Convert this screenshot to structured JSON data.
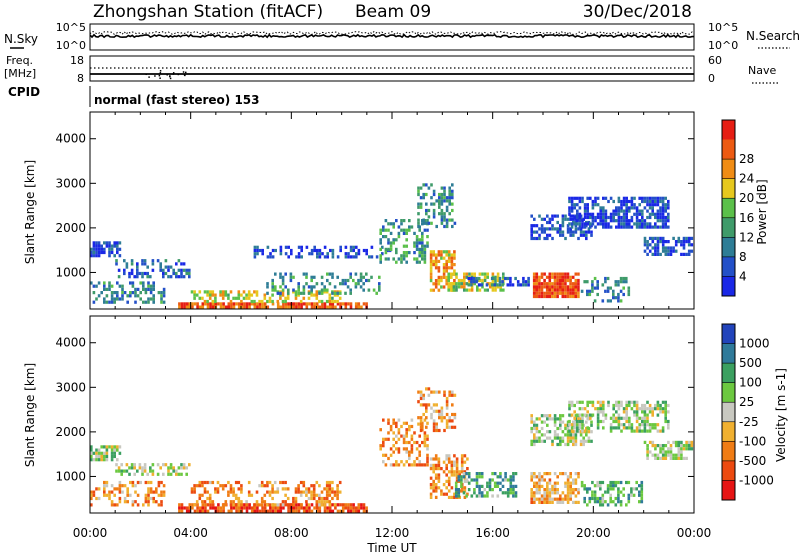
{
  "header": {
    "station": "Zhongshan Station (fitACF)",
    "beam": "Beam 09",
    "date": "30/Dec/2018"
  },
  "top_panel": {
    "left_label": "N.Sky",
    "right_label": "N.Search",
    "left_ticks": [
      "10^5",
      "10^0"
    ],
    "right_ticks": [
      "10^5",
      "10^0"
    ]
  },
  "freq_panel": {
    "left_label_1": "Freq.",
    "left_label_2": "[MHz]",
    "right_label": "Nave",
    "left_ticks": [
      "18",
      "8"
    ],
    "right_ticks": [
      "60",
      "0"
    ]
  },
  "cpid": {
    "label": "CPID",
    "mode": "normal (fast stereo) 153"
  },
  "x_axis": {
    "label": "Time UT",
    "ticks": [
      "00:00",
      "04:00",
      "08:00",
      "12:00",
      "16:00",
      "20:00",
      "00:00"
    ]
  },
  "chart_data": [
    {
      "type": "heatmap",
      "name": "power",
      "ylabel": "Slant Range [km]",
      "yticks": [
        "1000",
        "2000",
        "3000",
        "4000"
      ],
      "ylim": [
        180,
        4600
      ],
      "xlim_hours": [
        0,
        24
      ],
      "colorbar": {
        "label": "Power [dB]",
        "ticks": [
          "4",
          "8",
          "12",
          "16",
          "20",
          "24",
          "28"
        ],
        "colors": [
          "#1a28e6",
          "#2350c8",
          "#2e7d96",
          "#3f9b6a",
          "#5bc04a",
          "#e6c81e",
          "#f08c14",
          "#ec5a12",
          "#e61e14"
        ]
      },
      "blobs": [
        {
          "t0": 0.0,
          "t1": 1.2,
          "r0": 1350,
          "r1": 1700,
          "level": 0.12,
          "density": 0.7
        },
        {
          "t0": 0.0,
          "t1": 3.0,
          "r0": 300,
          "r1": 800,
          "level": 0.3,
          "density": 0.4
        },
        {
          "t0": 1.0,
          "t1": 4.0,
          "r0": 900,
          "r1": 1300,
          "level": 0.2,
          "density": 0.5
        },
        {
          "t0": 3.5,
          "t1": 11.0,
          "r0": 200,
          "r1": 330,
          "level": 0.85,
          "density": 0.85
        },
        {
          "t0": 4.0,
          "t1": 10.0,
          "r0": 300,
          "r1": 600,
          "level": 0.6,
          "density": 0.5
        },
        {
          "t0": 6.5,
          "t1": 12.0,
          "r0": 1300,
          "r1": 1600,
          "level": 0.15,
          "density": 0.4
        },
        {
          "t0": 7.0,
          "t1": 11.5,
          "r0": 500,
          "r1": 1000,
          "level": 0.35,
          "density": 0.35
        },
        {
          "t0": 11.5,
          "t1": 13.5,
          "r0": 1200,
          "r1": 2200,
          "level": 0.35,
          "density": 0.4
        },
        {
          "t0": 13.0,
          "t1": 14.5,
          "r0": 2000,
          "r1": 3000,
          "level": 0.3,
          "density": 0.45
        },
        {
          "t0": 13.5,
          "t1": 14.5,
          "r0": 600,
          "r1": 1500,
          "level": 0.7,
          "density": 0.6
        },
        {
          "t0": 14.2,
          "t1": 16.5,
          "r0": 600,
          "r1": 1000,
          "level": 0.55,
          "density": 0.7
        },
        {
          "t0": 15.0,
          "t1": 17.5,
          "r0": 700,
          "r1": 900,
          "level": 0.2,
          "density": 0.6
        },
        {
          "t0": 17.6,
          "t1": 19.5,
          "r0": 400,
          "r1": 1000,
          "level": 0.9,
          "density": 0.85
        },
        {
          "t0": 17.5,
          "t1": 20.0,
          "r0": 1700,
          "r1": 2300,
          "level": 0.15,
          "density": 0.55
        },
        {
          "t0": 19.0,
          "t1": 23.0,
          "r0": 2000,
          "r1": 2700,
          "level": 0.12,
          "density": 0.65
        },
        {
          "t0": 22.0,
          "t1": 24.0,
          "r0": 1400,
          "r1": 1800,
          "level": 0.15,
          "density": 0.6
        },
        {
          "t0": 19.5,
          "t1": 21.5,
          "r0": 300,
          "r1": 900,
          "level": 0.3,
          "density": 0.4
        }
      ]
    },
    {
      "type": "heatmap",
      "name": "velocity",
      "ylabel": "Slant Range [km]",
      "yticks": [
        "1000",
        "2000",
        "3000",
        "4000"
      ],
      "ylim": [
        180,
        4600
      ],
      "xlim_hours": [
        0,
        24
      ],
      "colorbar": {
        "label": "Velocity [m s-1]",
        "ticks": [
          "1000",
          "500",
          "100",
          "25",
          "-25",
          "-100",
          "-500",
          "-1000"
        ],
        "colors": [
          "#2244bb",
          "#2f7a9a",
          "#3ba060",
          "#6cc840",
          "#c8c8c0",
          "#f0b030",
          "#f07c14",
          "#ec4a10",
          "#e61414"
        ]
      },
      "blobs": [
        {
          "t0": 0.0,
          "t1": 1.2,
          "r0": 1350,
          "r1": 1700,
          "level": 0.42,
          "density": 0.7
        },
        {
          "t0": 0.0,
          "t1": 3.0,
          "r0": 300,
          "r1": 900,
          "level": 0.7,
          "density": 0.4
        },
        {
          "t0": 1.0,
          "t1": 4.0,
          "r0": 1000,
          "r1": 1300,
          "level": 0.45,
          "density": 0.5
        },
        {
          "t0": 3.5,
          "t1": 11.0,
          "r0": 200,
          "r1": 400,
          "level": 0.85,
          "density": 0.8
        },
        {
          "t0": 4.0,
          "t1": 10.0,
          "r0": 350,
          "r1": 900,
          "level": 0.72,
          "density": 0.45
        },
        {
          "t0": 11.5,
          "t1": 13.5,
          "r0": 1200,
          "r1": 2300,
          "level": 0.7,
          "density": 0.4
        },
        {
          "t0": 13.0,
          "t1": 14.5,
          "r0": 2000,
          "r1": 3000,
          "level": 0.65,
          "density": 0.45
        },
        {
          "t0": 13.5,
          "t1": 15.0,
          "r0": 500,
          "r1": 1500,
          "level": 0.7,
          "density": 0.55
        },
        {
          "t0": 14.5,
          "t1": 17.0,
          "r0": 500,
          "r1": 1100,
          "level": 0.3,
          "density": 0.55
        },
        {
          "t0": 17.5,
          "t1": 19.5,
          "r0": 350,
          "r1": 1100,
          "level": 0.62,
          "density": 0.7
        },
        {
          "t0": 17.5,
          "t1": 20.0,
          "r0": 1700,
          "r1": 2400,
          "level": 0.44,
          "density": 0.55
        },
        {
          "t0": 19.0,
          "t1": 23.0,
          "r0": 2000,
          "r1": 2700,
          "level": 0.43,
          "density": 0.6
        },
        {
          "t0": 22.0,
          "t1": 24.0,
          "r0": 1400,
          "r1": 1800,
          "level": 0.44,
          "density": 0.6
        },
        {
          "t0": 19.5,
          "t1": 22.0,
          "r0": 300,
          "r1": 900,
          "level": 0.3,
          "density": 0.45
        }
      ]
    }
  ]
}
